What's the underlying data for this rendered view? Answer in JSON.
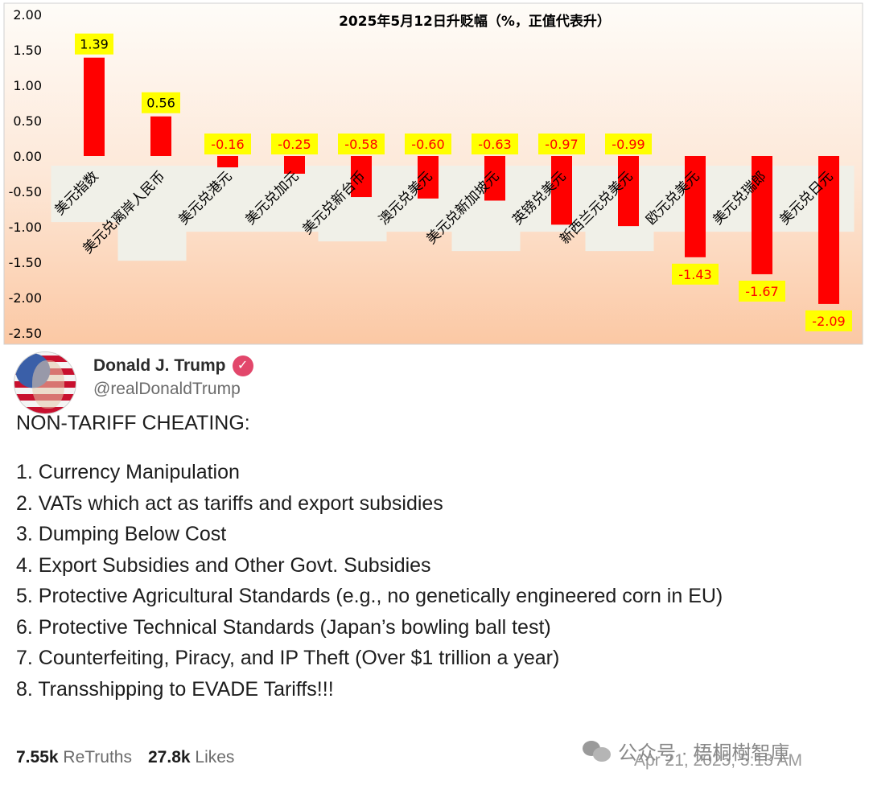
{
  "chart_data": {
    "type": "bar",
    "title": "2025年5月12日升贬幅（%，正值代表升）",
    "ylim": [
      -2.5,
      2.0
    ],
    "yticks": [
      "2.00",
      "1.50",
      "1.00",
      "0.50",
      "0.00",
      "-0.50",
      "-1.00",
      "-1.50",
      "-2.00",
      "-2.50"
    ],
    "categories": [
      "美元指数",
      "美元兑离岸人民币",
      "美元兑港元",
      "美元兑加元",
      "美元兑新台币",
      "澳元兑美元",
      "美元兑新加坡元",
      "英镑兑美元",
      "新西兰元兑美元",
      "欧元兑美元",
      "美元兑瑞郎",
      "美元兑日元"
    ],
    "values": [
      1.39,
      0.56,
      -0.16,
      -0.25,
      -0.58,
      -0.6,
      -0.63,
      -0.97,
      -0.99,
      -1.43,
      -1.67,
      -2.09
    ],
    "labels": [
      "1.39",
      "0.56",
      "-0.16",
      "-0.25",
      "-0.58",
      "-0.60",
      "-0.63",
      "-0.97",
      "-0.99",
      "-1.43",
      "-1.67",
      "-2.09"
    ],
    "colors": {
      "bar": "#ff0000",
      "label_bg": "#ffff00",
      "bg_top": "#fefcf8",
      "bg_bottom": "#fbd0b0",
      "label_panel": "#f0f0e8"
    }
  },
  "post": {
    "name": "Donald J. Trump",
    "handle": "@realDonaldTrump",
    "verified_icon": "verified-badge-icon",
    "title": "NON-TARIFF CHEATING:",
    "items": [
      "1. Currency Manipulation",
      "2. VATs which act as tariffs and export subsidies",
      "3. Dumping Below Cost",
      "4. Export Subsidies and Other Govt. Subsidies",
      "5. Protective Agricultural Standards (e.g., no genetically engineered corn in EU)",
      "6. Protective Technical Standards (Japan’s bowling ball test)",
      "7. Counterfeiting, Piracy, and IP Theft (Over $1 trillion a year)",
      "8. Transshipping to EVADE Tariffs!!!"
    ],
    "retruths_count": "7.55k",
    "retruths_label": "ReTruths",
    "likes_count": "27.8k",
    "likes_label": "Likes",
    "date": "Apr 21, 2025, 5:13 AM",
    "watermark": "公众号 · 梧桐樹智庫"
  }
}
